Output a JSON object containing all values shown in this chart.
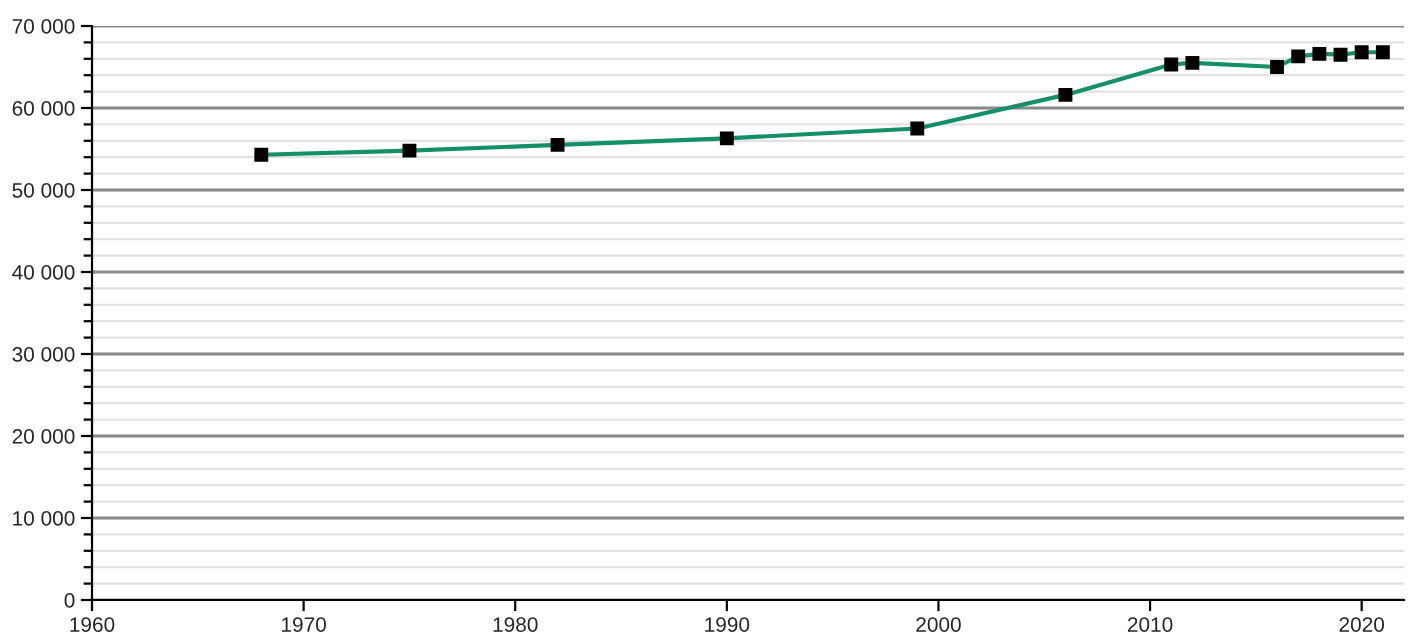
{
  "chart_data": {
    "type": "line",
    "x": [
      1968,
      1975,
      1982,
      1990,
      1999,
      2006,
      2011,
      2012,
      2016,
      2017,
      2018,
      2019,
      2020,
      2021
    ],
    "series": [
      {
        "color": "#138f6a",
        "values": [
          54300,
          54800,
          55500,
          56300,
          57500,
          61600,
          65300,
          65500,
          65000,
          66300,
          66600,
          66500,
          66800,
          66800
        ]
      }
    ],
    "xlim": [
      1960,
      2022
    ],
    "xticks": [
      1960,
      1970,
      1980,
      1990,
      2000,
      2010,
      2020
    ],
    "ylim": [
      0,
      70000
    ],
    "yticks": [
      {
        "value": 0,
        "label": "0"
      },
      {
        "value": 10000,
        "label": "10 000"
      },
      {
        "value": 20000,
        "label": "20 000"
      },
      {
        "value": 30000,
        "label": "30 000"
      },
      {
        "value": 40000,
        "label": "40 000"
      },
      {
        "value": 50000,
        "label": "50 000"
      },
      {
        "value": 60000,
        "label": "60 000"
      },
      {
        "value": 70000,
        "label": "70 000"
      }
    ],
    "grid": "y",
    "marker": "square",
    "line_style": "solid"
  }
}
